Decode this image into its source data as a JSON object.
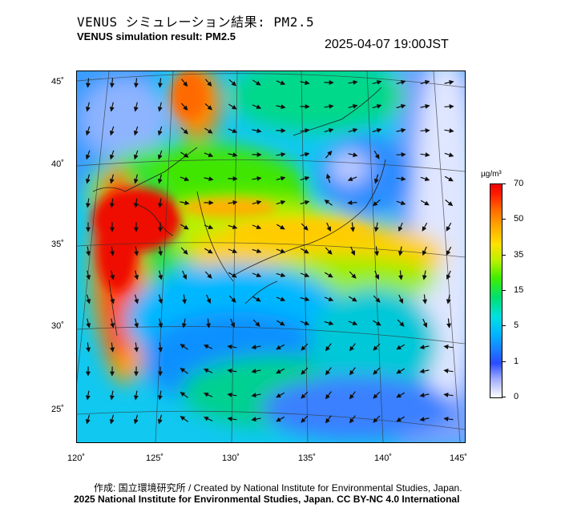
{
  "header": {
    "title_jp": "VENUS シミュレーション結果: PM2.5",
    "title_en": "VENUS simulation result: PM2.5",
    "timestamp": "2025-04-07 19:00JST"
  },
  "map": {
    "lat_labels": [
      "45˚",
      "40˚",
      "35˚",
      "30˚",
      "25˚"
    ],
    "lon_labels": [
      "120˚",
      "125˚",
      "130˚",
      "135˚",
      "140˚",
      "145˚"
    ]
  },
  "colorbar": {
    "unit": "µg/m³",
    "ticks": [
      "70",
      "50",
      "35",
      "15",
      "5",
      "1",
      "0"
    ],
    "colors": [
      "#ee0000",
      "#ff6a00",
      "#ffe000",
      "#40ee00",
      "#00e0e0",
      "#1a7cff",
      "#ffffff"
    ]
  },
  "footer": {
    "credit_jp": "作成: 国立環境研究所 / Created by National Institute for Environmental Studies, Japan.",
    "credit_en": "2025 National Institute for Environmental Studies, Japan. CC BY-NC 4.0 International"
  }
}
